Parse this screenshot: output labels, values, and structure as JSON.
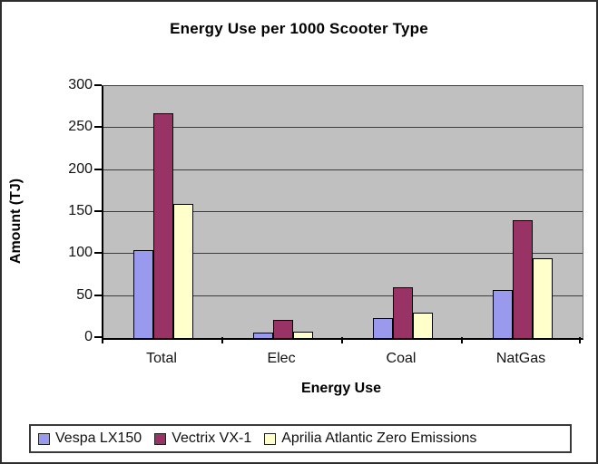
{
  "title": "Energy Use per 1000 Scooter Type",
  "chart_data": {
    "type": "bar",
    "title": "Energy Use per 1000 Scooter Type",
    "categories": [
      "Total",
      "Elec",
      "Coal",
      "NatGas"
    ],
    "series": [
      {
        "name": "Vespa LX150",
        "color": "#9999ee",
        "values": [
          105,
          6,
          24,
          57
        ]
      },
      {
        "name": "Vectrix VX-1",
        "color": "#993366",
        "values": [
          268,
          22,
          60,
          140
        ]
      },
      {
        "name": "Aprilia Atlantic Zero Emissions",
        "color": "#ffffcc",
        "values": [
          160,
          8,
          30,
          95
        ]
      }
    ],
    "xlabel": "Energy Use",
    "ylabel": "Amount (TJ)",
    "ylim": [
      0,
      300
    ],
    "yticks": [
      0,
      50,
      100,
      150,
      200,
      250,
      300
    ],
    "grid": true,
    "legend_position": "bottom",
    "plot_bg": "#c0c0c0",
    "bar_border_color": "#000000"
  }
}
